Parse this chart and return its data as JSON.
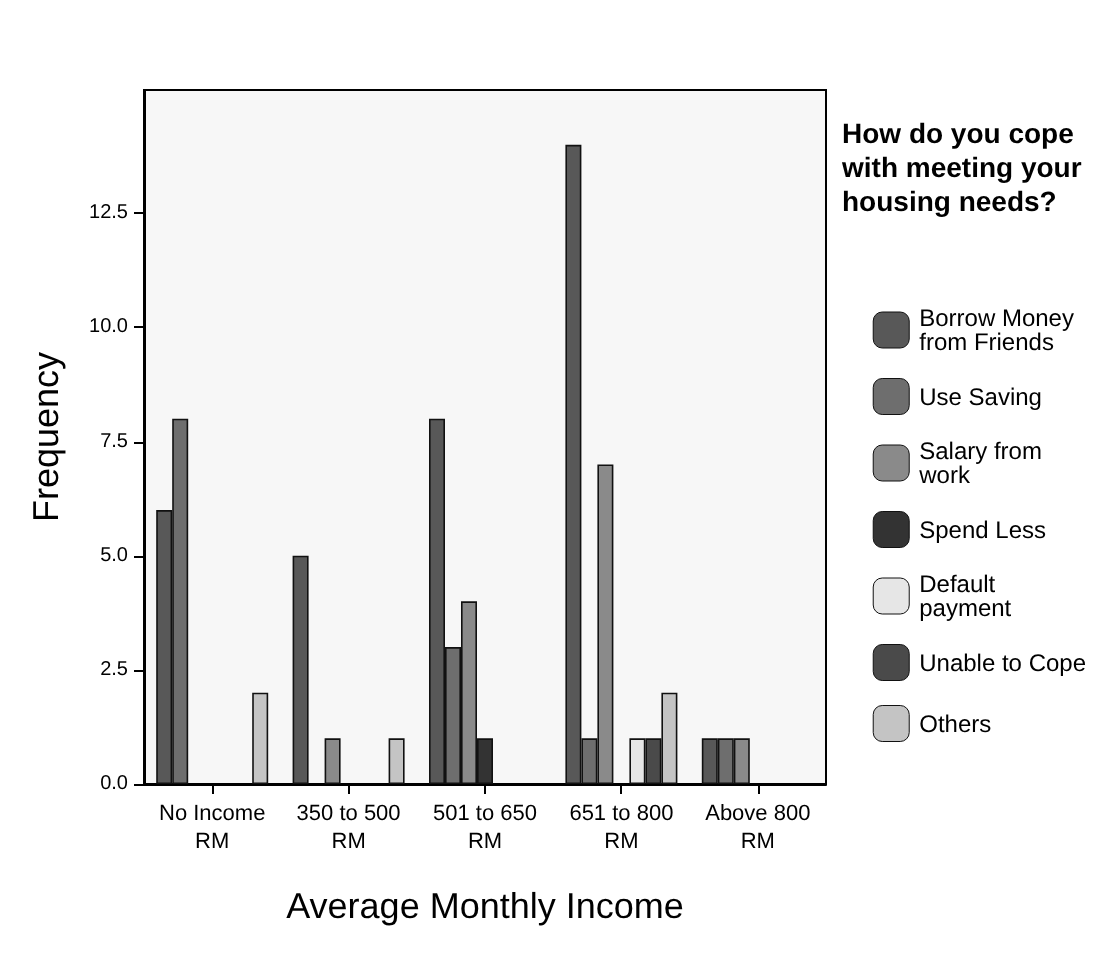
{
  "chart_data": {
    "type": "bar",
    "xlabel": "Average Monthly Income",
    "ylabel": "Frequency",
    "legend_title": "How do you cope with meeting your housing needs?",
    "categories": [
      "No Income RM",
      "350 to 500 RM",
      "501 to 650 RM",
      "651 to 800 RM",
      "Above 800 RM"
    ],
    "series": [
      {
        "name": "Borrow Money from Friends",
        "color": "#585858",
        "values": [
          6,
          5,
          8,
          14,
          1
        ]
      },
      {
        "name": "Use Saving",
        "color": "#6e6e6e",
        "values": [
          8,
          null,
          3,
          1,
          1
        ]
      },
      {
        "name": "Salary from work",
        "color": "#8a8a8a",
        "values": [
          null,
          1,
          4,
          7,
          1
        ]
      },
      {
        "name": "Spend Less",
        "color": "#333333",
        "values": [
          null,
          null,
          1,
          null,
          null
        ]
      },
      {
        "name": "Default payment",
        "color": "#e6e6e6",
        "values": [
          null,
          null,
          null,
          1,
          null
        ]
      },
      {
        "name": "Unable to Cope",
        "color": "#4a4a4a",
        "values": [
          null,
          null,
          null,
          1,
          null
        ]
      },
      {
        "name": "Others",
        "color": "#c4c4c4",
        "values": [
          2,
          1,
          null,
          2,
          null
        ]
      }
    ],
    "ylim": [
      0,
      15.2
    ],
    "yticks": [
      {
        "value": 0,
        "label": "0.0"
      },
      {
        "value": 2.5,
        "label": "2.5"
      },
      {
        "value": 5,
        "label": "5.0"
      },
      {
        "value": 7.5,
        "label": "7.5"
      },
      {
        "value": 10,
        "label": "10.0"
      },
      {
        "value": 12.5,
        "label": "12.5"
      }
    ],
    "grid": false,
    "legend": "right"
  }
}
